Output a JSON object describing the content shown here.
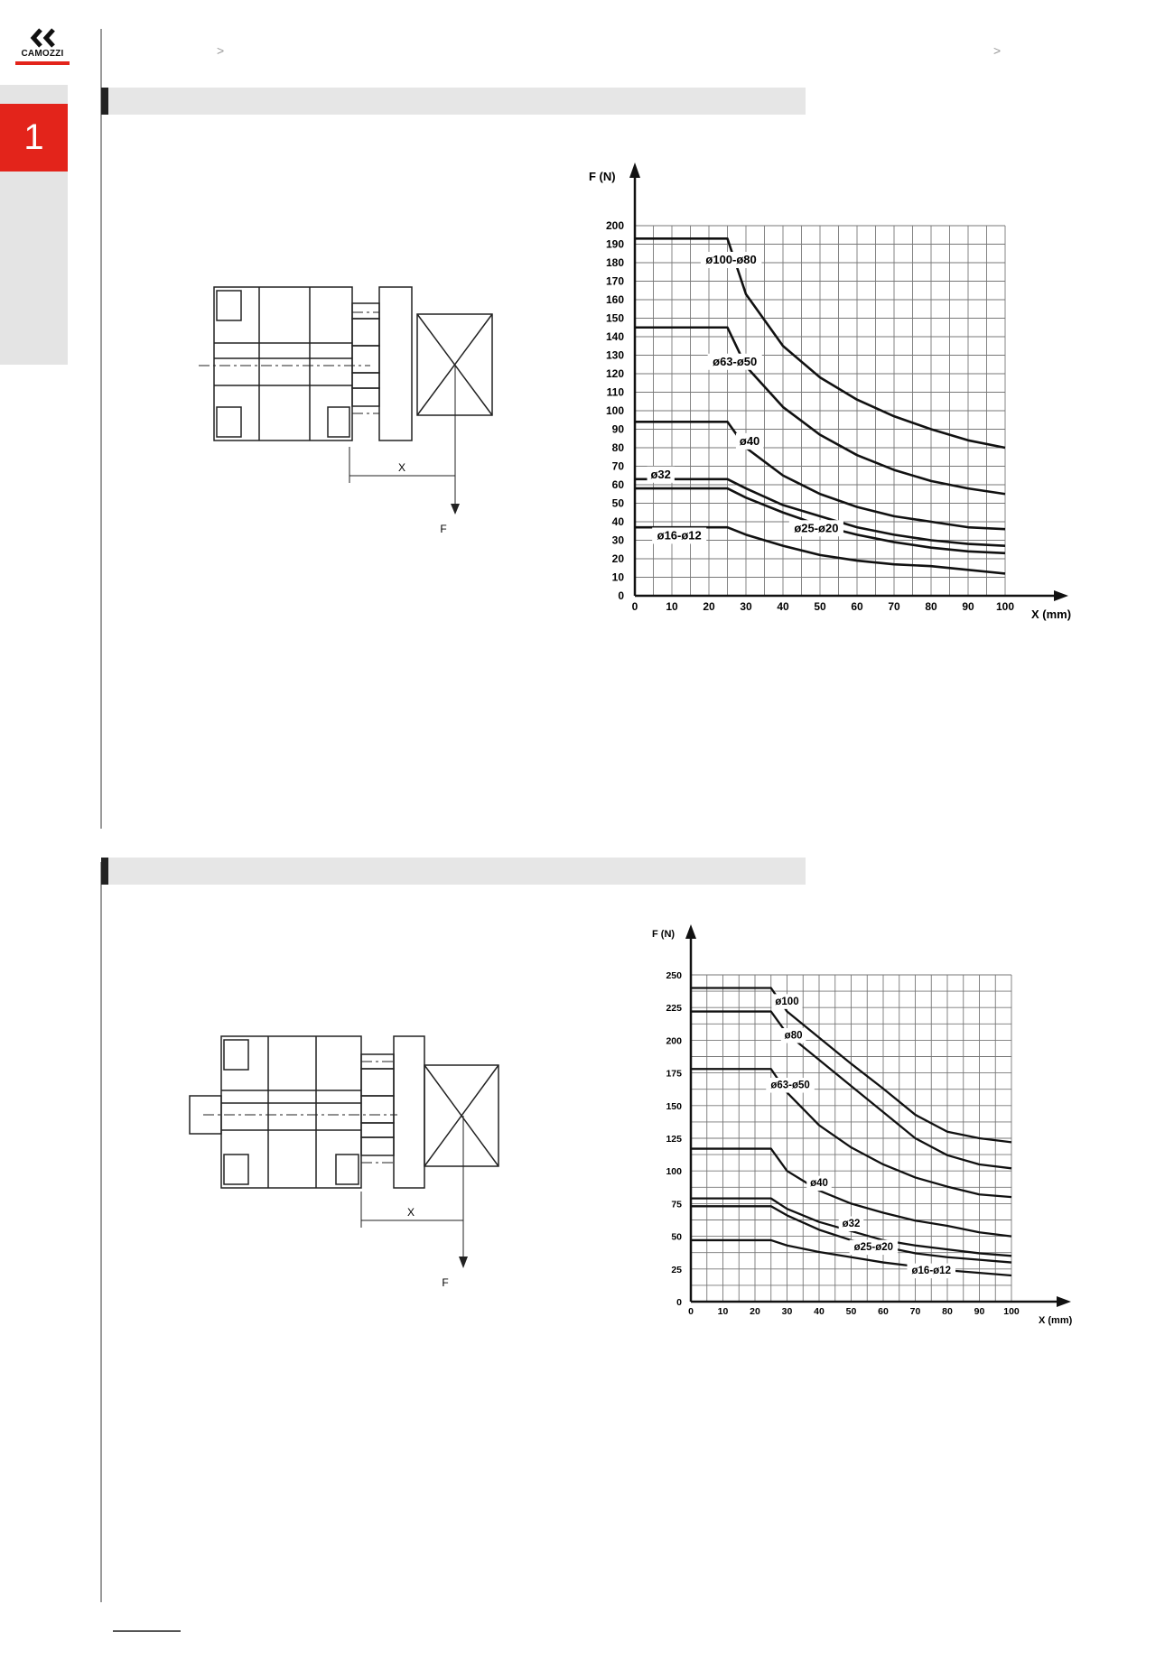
{
  "brand": {
    "name": "CAMOZZI",
    "accent": "#e3241b"
  },
  "sidebar": {
    "section_number": "1"
  },
  "header": {
    "breadcrumb_sep_1": ">",
    "breadcrumb_sep_2": ">"
  },
  "section1": {
    "diagram": {
      "x_label": "X",
      "f_label": "F"
    },
    "chart_text": {
      "y_axis_label": "F (N)",
      "x_axis_label": "X (mm)",
      "x_ticks": [
        "0",
        "10",
        "20",
        "30",
        "40",
        "50",
        "60",
        "70",
        "80",
        "90",
        "100"
      ],
      "y_ticks": [
        "0",
        "10",
        "20",
        "30",
        "40",
        "50",
        "60",
        "70",
        "80",
        "90",
        "100",
        "110",
        "120",
        "130",
        "140",
        "150",
        "160",
        "170",
        "180",
        "190",
        "200"
      ],
      "series_labels": [
        "ø100-ø80",
        "ø63-ø50",
        "ø40",
        "ø32",
        "ø25-ø20",
        "ø16-ø12"
      ]
    }
  },
  "section2": {
    "diagram": {
      "x_label": "X",
      "f_label": "F"
    },
    "chart_text": {
      "y_axis_label": "F (N)",
      "x_axis_label": "X (mm)",
      "x_ticks": [
        "0",
        "10",
        "20",
        "30",
        "40",
        "50",
        "60",
        "70",
        "80",
        "90",
        "100"
      ],
      "y_ticks": [
        "0",
        "25",
        "50",
        "75",
        "100",
        "125",
        "150",
        "175",
        "200",
        "225",
        "250"
      ],
      "series_labels": [
        "ø100",
        "ø80",
        "ø63-ø50",
        "ø40",
        "ø32",
        "ø25-ø20",
        "ø16-ø12"
      ]
    }
  },
  "chart_data": [
    {
      "type": "line",
      "xlabel": "X (mm)",
      "ylabel": "F (N)",
      "xlim": [
        0,
        100
      ],
      "ylim": [
        0,
        200
      ],
      "grid": true,
      "series": [
        {
          "name": "ø100-ø80",
          "x": [
            0,
            25,
            30,
            40,
            50,
            60,
            70,
            80,
            90,
            100
          ],
          "y": [
            193,
            193,
            163,
            135,
            118,
            106,
            97,
            90,
            84,
            80
          ]
        },
        {
          "name": "ø63-ø50",
          "x": [
            0,
            25,
            30,
            40,
            50,
            60,
            70,
            80,
            90,
            100
          ],
          "y": [
            145,
            145,
            124,
            102,
            87,
            76,
            68,
            62,
            58,
            55
          ]
        },
        {
          "name": "ø40",
          "x": [
            0,
            25,
            30,
            40,
            50,
            60,
            70,
            80,
            90,
            100
          ],
          "y": [
            94,
            94,
            80,
            65,
            55,
            48,
            43,
            40,
            37,
            36
          ]
        },
        {
          "name": "ø32",
          "x": [
            0,
            25,
            30,
            40,
            50,
            60,
            70,
            80,
            90,
            100
          ],
          "y": [
            63,
            63,
            58,
            49,
            43,
            37,
            33,
            30,
            28,
            27
          ]
        },
        {
          "name": "ø25-ø20",
          "x": [
            0,
            25,
            30,
            40,
            50,
            60,
            70,
            80,
            90,
            100
          ],
          "y": [
            58,
            58,
            53,
            45,
            38,
            33,
            29,
            26,
            24,
            23
          ]
        },
        {
          "name": "ø16-ø12",
          "x": [
            0,
            25,
            30,
            40,
            50,
            60,
            70,
            80,
            90,
            100
          ],
          "y": [
            37,
            37,
            33,
            27,
            22,
            19,
            17,
            16,
            14,
            12
          ]
        }
      ]
    },
    {
      "type": "line",
      "xlabel": "X (mm)",
      "ylabel": "F (N)",
      "xlim": [
        0,
        100
      ],
      "ylim": [
        0,
        250
      ],
      "grid": true,
      "series": [
        {
          "name": "ø100",
          "x": [
            0,
            25,
            30,
            40,
            50,
            60,
            70,
            80,
            90,
            100
          ],
          "y": [
            240,
            240,
            222,
            202,
            182,
            163,
            143,
            130,
            125,
            122
          ]
        },
        {
          "name": "ø80",
          "x": [
            0,
            25,
            30,
            40,
            50,
            60,
            70,
            80,
            90,
            100
          ],
          "y": [
            222,
            222,
            205,
            185,
            165,
            145,
            125,
            112,
            105,
            102
          ]
        },
        {
          "name": "ø63-ø50",
          "x": [
            0,
            25,
            30,
            40,
            50,
            60,
            70,
            80,
            90,
            100
          ],
          "y": [
            178,
            178,
            160,
            135,
            118,
            105,
            95,
            88,
            82,
            80
          ]
        },
        {
          "name": "ø40",
          "x": [
            0,
            25,
            30,
            40,
            50,
            60,
            70,
            80,
            90,
            100
          ],
          "y": [
            117,
            117,
            100,
            85,
            75,
            68,
            62,
            58,
            53,
            50
          ]
        },
        {
          "name": "ø32",
          "x": [
            0,
            25,
            30,
            40,
            50,
            60,
            70,
            80,
            90,
            100
          ],
          "y": [
            79,
            79,
            71,
            61,
            54,
            47,
            43,
            40,
            37,
            35
          ]
        },
        {
          "name": "ø25-ø20",
          "x": [
            0,
            25,
            30,
            40,
            50,
            60,
            70,
            80,
            90,
            100
          ],
          "y": [
            73,
            73,
            66,
            55,
            47,
            42,
            37,
            34,
            32,
            30
          ]
        },
        {
          "name": "ø16-ø12",
          "x": [
            0,
            25,
            30,
            40,
            50,
            60,
            70,
            80,
            90,
            100
          ],
          "y": [
            47,
            47,
            43,
            38,
            34,
            30,
            27,
            24,
            22,
            20
          ]
        }
      ]
    }
  ]
}
